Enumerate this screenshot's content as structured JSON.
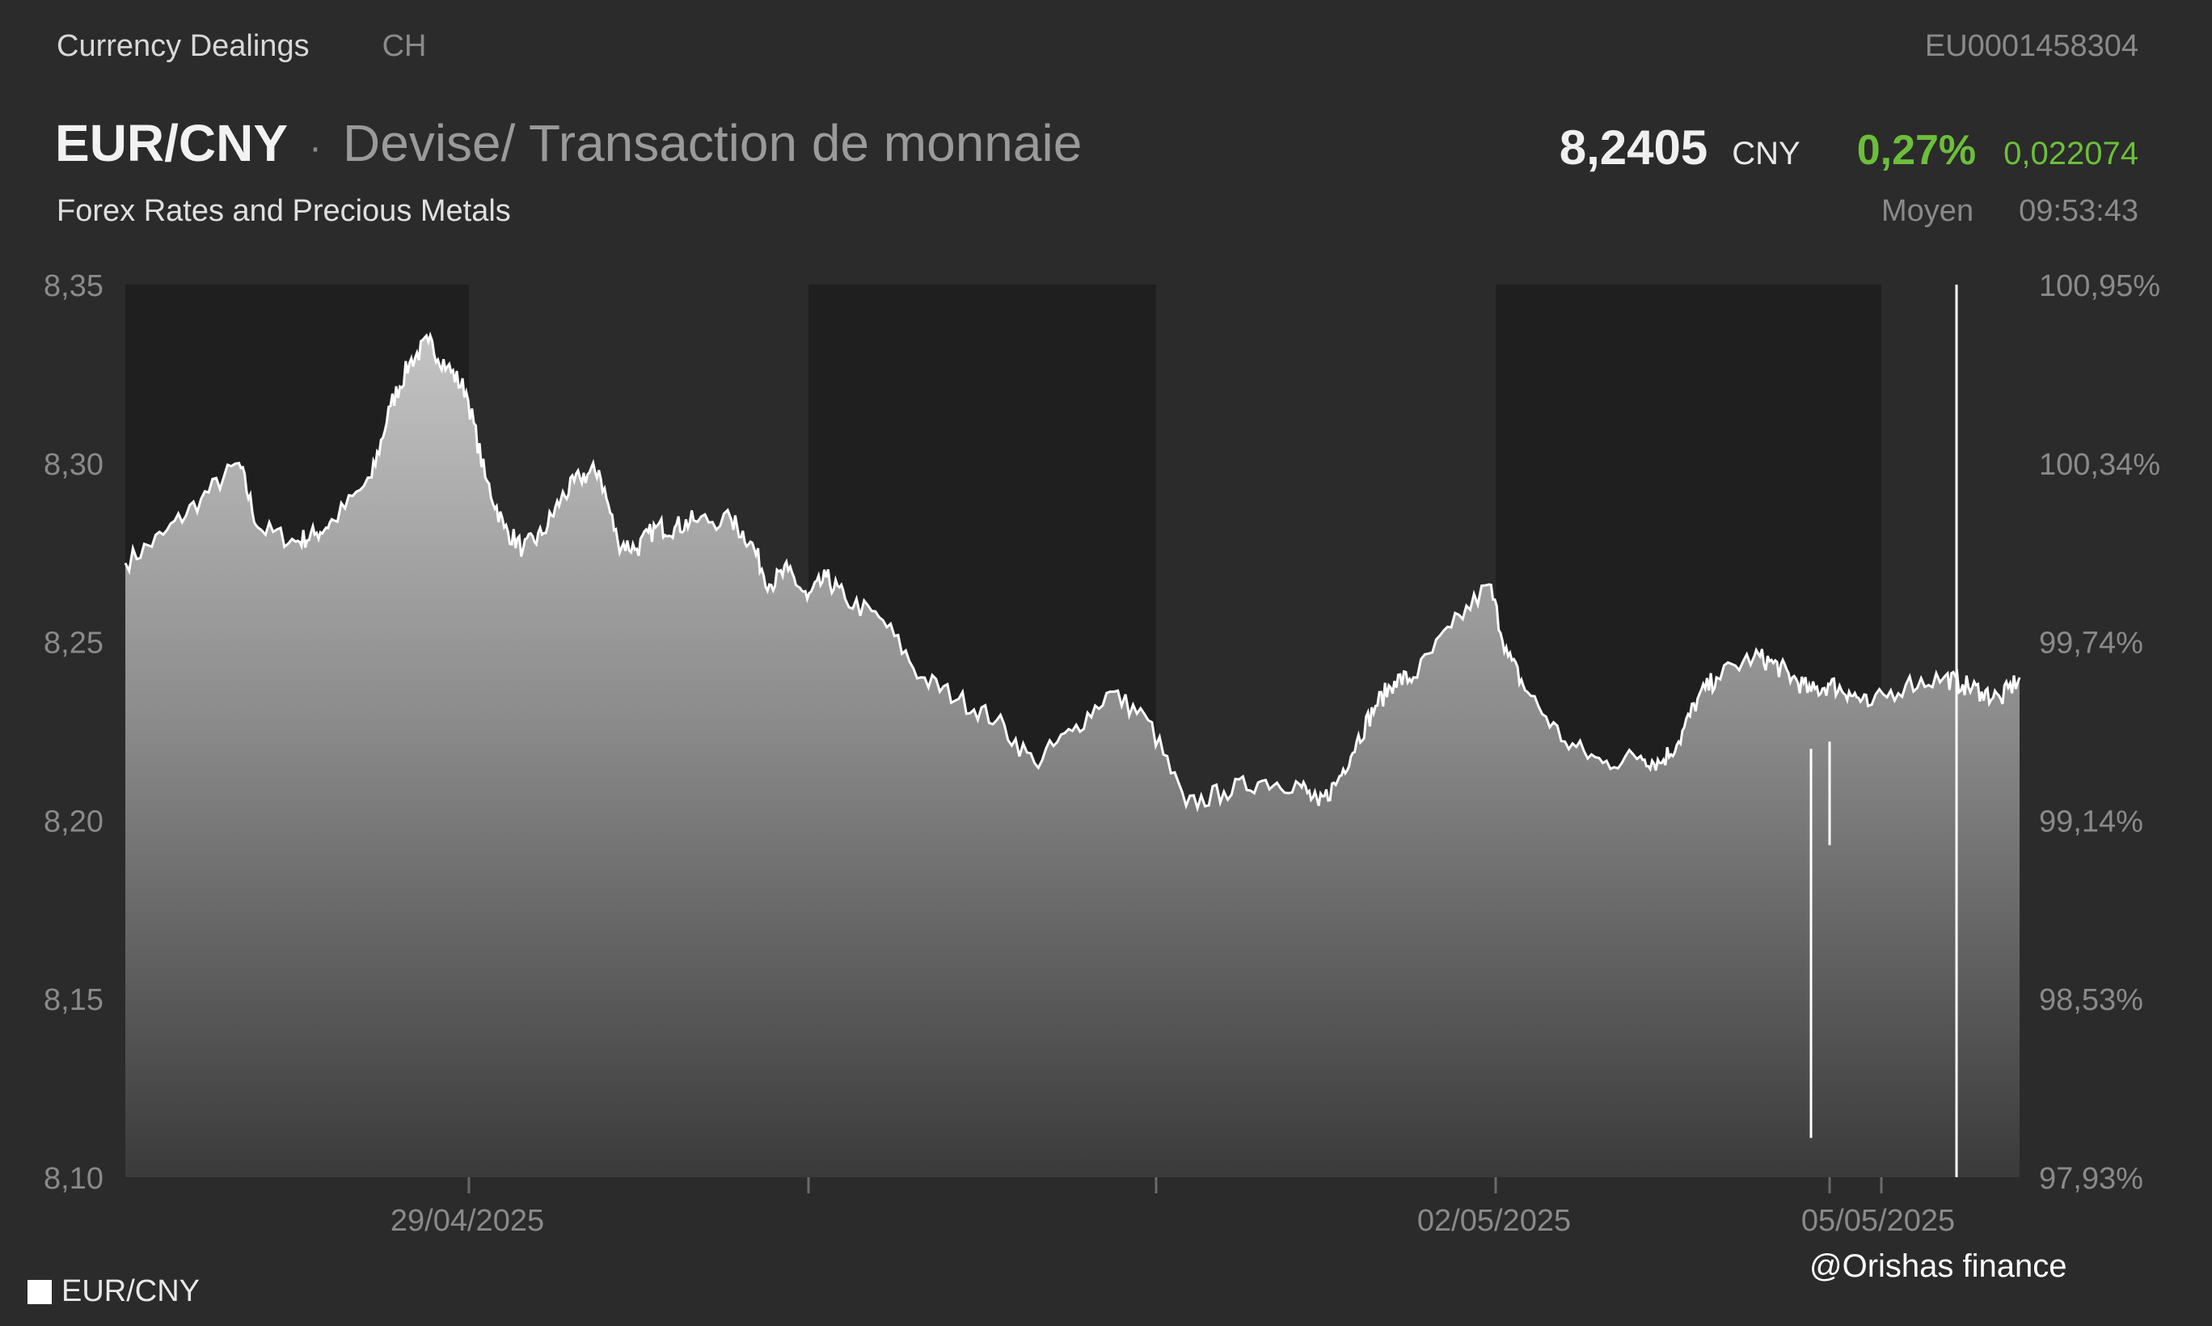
{
  "header": {
    "category": "Currency Dealings",
    "region": "CH",
    "isin": "EU0001458304"
  },
  "instrument": {
    "pair": "EUR/CNY",
    "separator": "·",
    "description": "Devise/ Transaction de monnaie",
    "subtitle": "Forex Rates and Precious Metals"
  },
  "quote": {
    "price": "8,2405",
    "currency": "CNY",
    "change_pct": "0,27%",
    "change_abs": "0,022074",
    "price_type": "Moyen",
    "time": "09:53:43"
  },
  "colors": {
    "background": "#2b2b2b",
    "positive": "#6cbf3a",
    "line": "#ffffff"
  },
  "legend": {
    "label": "EUR/CNY"
  },
  "watermark": "@Orishas finance",
  "chart_data": {
    "type": "area",
    "series": [
      {
        "name": "EUR/CNY",
        "x": [
          0,
          0.02,
          0.04,
          0.06,
          0.07,
          0.09,
          0.1,
          0.11,
          0.13,
          0.14,
          0.15,
          0.16,
          0.17,
          0.18,
          0.19,
          0.2,
          0.21,
          0.22,
          0.23,
          0.24,
          0.25,
          0.26,
          0.27,
          0.28,
          0.29,
          0.3,
          0.32,
          0.33,
          0.34,
          0.35,
          0.36,
          0.37,
          0.38,
          0.4,
          0.42,
          0.44,
          0.46,
          0.48,
          0.5,
          0.52,
          0.54,
          0.56,
          0.58,
          0.6,
          0.62,
          0.63,
          0.64,
          0.65,
          0.66,
          0.67,
          0.68,
          0.7,
          0.72,
          0.73,
          0.74,
          0.76,
          0.78,
          0.8,
          0.81,
          0.82,
          0.83,
          0.84,
          0.86,
          0.87,
          0.88,
          0.89,
          0.9,
          0.91,
          0.92,
          0.94,
          0.96,
          0.97,
          0.98,
          0.99,
          1.0
        ],
        "values": [
          8.272,
          8.28,
          8.29,
          8.3,
          8.282,
          8.278,
          8.28,
          8.284,
          8.296,
          8.316,
          8.328,
          8.334,
          8.327,
          8.32,
          8.296,
          8.282,
          8.276,
          8.28,
          8.29,
          8.296,
          8.298,
          8.278,
          8.276,
          8.282,
          8.282,
          8.284,
          8.284,
          8.278,
          8.266,
          8.27,
          8.262,
          8.268,
          8.262,
          8.256,
          8.24,
          8.234,
          8.228,
          8.216,
          8.225,
          8.236,
          8.228,
          8.204,
          8.208,
          8.211,
          8.21,
          8.204,
          8.211,
          8.222,
          8.232,
          8.239,
          8.24,
          8.254,
          8.266,
          8.246,
          8.236,
          8.222,
          8.216,
          8.218,
          8.216,
          8.222,
          8.234,
          8.24,
          8.246,
          8.244,
          8.24,
          8.236,
          8.238,
          8.236,
          8.232,
          8.238,
          8.24,
          8.238,
          8.236,
          8.234,
          8.24
        ]
      }
    ],
    "ylim": [
      8.1,
      8.35
    ],
    "y_ticks": [
      "8,35",
      "8,30",
      "8,25",
      "8,20",
      "8,15",
      "8,10"
    ],
    "y2_ticks": [
      "100,95%",
      "100,34%",
      "99,74%",
      "99,14%",
      "98,53%",
      "97,93%"
    ],
    "x_ticks": [
      "29/04/2025",
      "02/05/2025",
      "05/05/2025"
    ],
    "grid": false,
    "legend_position": "bottom-left"
  }
}
